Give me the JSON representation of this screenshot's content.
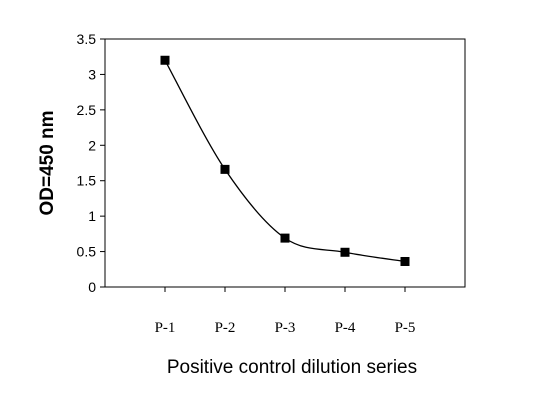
{
  "chart_data": {
    "type": "line",
    "title": "",
    "xlabel": "Positive control dilution series",
    "ylabel": "OD=450 nm",
    "categories": [
      "P-1",
      "P-2",
      "P-3",
      "P-4",
      "P-5"
    ],
    "series": [
      {
        "values": [
          3.2,
          1.66,
          0.69,
          0.49,
          0.36
        ]
      }
    ],
    "ylim": [
      0,
      3.5
    ],
    "yticks": [
      "0",
      "0.5",
      "1",
      "1.5",
      "2",
      "2.5",
      "3",
      "3.5"
    ],
    "grid": false,
    "legend": "none",
    "smooth": true,
    "marker": "square",
    "colors": {
      "line": "#000000",
      "marker": "#000000"
    }
  }
}
